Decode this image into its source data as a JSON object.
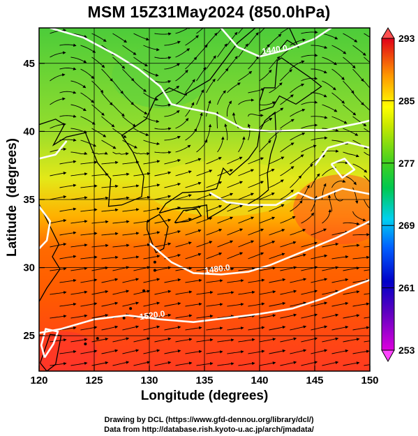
{
  "title": "MSM 15Z31May2024 (850.0hPa)",
  "xlabel": "Longitude (degrees)",
  "ylabel": "Latitude  (degrees)",
  "credit_line1": "Drawing by DCL (https://www.gfd-dennou.org/library/dcl/)",
  "credit_line2": "Data from http://database.rish.kyoto-u.ac.jp/arch/jmadata/",
  "map": {
    "lon_range": [
      120,
      150
    ],
    "lat_range": [
      22.4,
      47.6
    ],
    "lon_ticks": [
      120,
      125,
      130,
      135,
      140,
      145,
      150
    ],
    "lat_ticks": [
      25,
      30,
      35,
      40,
      45
    ],
    "grid": true
  },
  "colorbar": {
    "range": [
      253,
      293
    ],
    "ticks": [
      253,
      261,
      269,
      277,
      285,
      293
    ],
    "colors": [
      "#dd00dd",
      "#0000c8",
      "#0080ff",
      "#00e8e0",
      "#00cc40",
      "#a0e000",
      "#ffff00",
      "#ffa000",
      "#ff3000",
      "#e00020"
    ]
  },
  "contours": [
    {
      "label": "1440.0",
      "lon": 141.4,
      "lat": 45.8
    },
    {
      "label": "1480.0",
      "lon": 136.2,
      "lat": 29.7
    },
    {
      "label": "1520.0",
      "lon": 130.3,
      "lat": 26.3
    }
  ],
  "chart_data": {
    "type": "map",
    "title": "MSM 15Z31May2024 (850.0hPa)",
    "xlabel": "Longitude (degrees)",
    "ylabel": "Latitude  (degrees)",
    "xlim": [
      120,
      150
    ],
    "ylim": [
      22.4,
      47.6
    ],
    "colorbar_range": [
      253,
      293
    ],
    "colorbar_ticks": [
      253,
      261,
      269,
      277,
      285,
      293
    ],
    "contour_values": [
      1440.0,
      1480.0,
      1520.0
    ],
    "grid": true
  }
}
